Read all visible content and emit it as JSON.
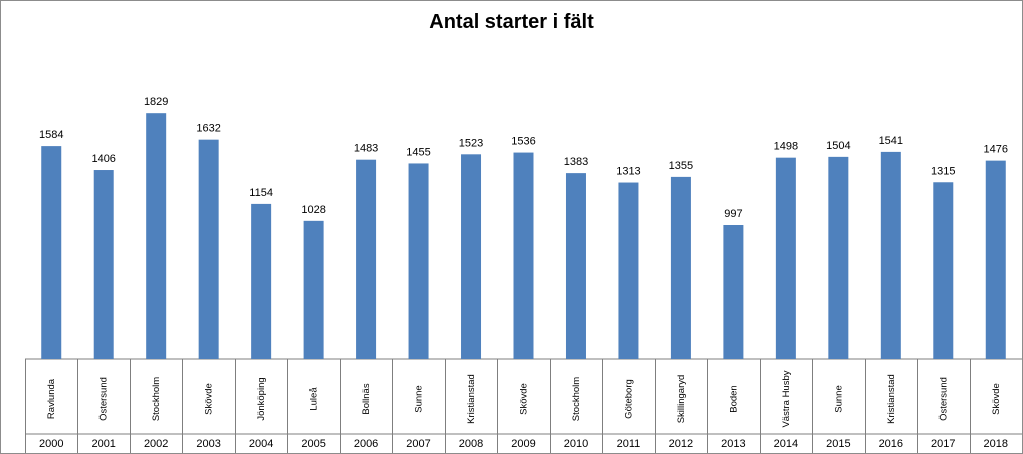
{
  "chart_data": {
    "type": "bar",
    "title": "Antal starter i fält",
    "xlabel": "",
    "ylabel": "",
    "ylim": [
      0,
      2000
    ],
    "grid": false,
    "legend": "none",
    "bar_color": "#4f81bd",
    "categories": [
      {
        "place": "Ravlunda",
        "year": "2000"
      },
      {
        "place": "Östersund",
        "year": "2001"
      },
      {
        "place": "Stockholm",
        "year": "2002"
      },
      {
        "place": "Skövde",
        "year": "2003"
      },
      {
        "place": "Jönköping",
        "year": "2004"
      },
      {
        "place": "Luleå",
        "year": "2005"
      },
      {
        "place": "Bollnäs",
        "year": "2006"
      },
      {
        "place": "Sunne",
        "year": "2007"
      },
      {
        "place": "Kristianstad",
        "year": "2008"
      },
      {
        "place": "Skövde",
        "year": "2009"
      },
      {
        "place": "Stockholm",
        "year": "2010"
      },
      {
        "place": "Göteborg",
        "year": "2011"
      },
      {
        "place": "Skillingaryd",
        "year": "2012"
      },
      {
        "place": "Boden",
        "year": "2013"
      },
      {
        "place": "Västra Husby",
        "year": "2014"
      },
      {
        "place": "Sunne",
        "year": "2015"
      },
      {
        "place": "Kristianstad",
        "year": "2016"
      },
      {
        "place": "Östersund",
        "year": "2017"
      },
      {
        "place": "Skövde",
        "year": "2018"
      }
    ],
    "values": [
      1584,
      1406,
      1829,
      1632,
      1154,
      1028,
      1483,
      1455,
      1523,
      1536,
      1383,
      1313,
      1355,
      997,
      1498,
      1504,
      1541,
      1315,
      1476
    ]
  }
}
